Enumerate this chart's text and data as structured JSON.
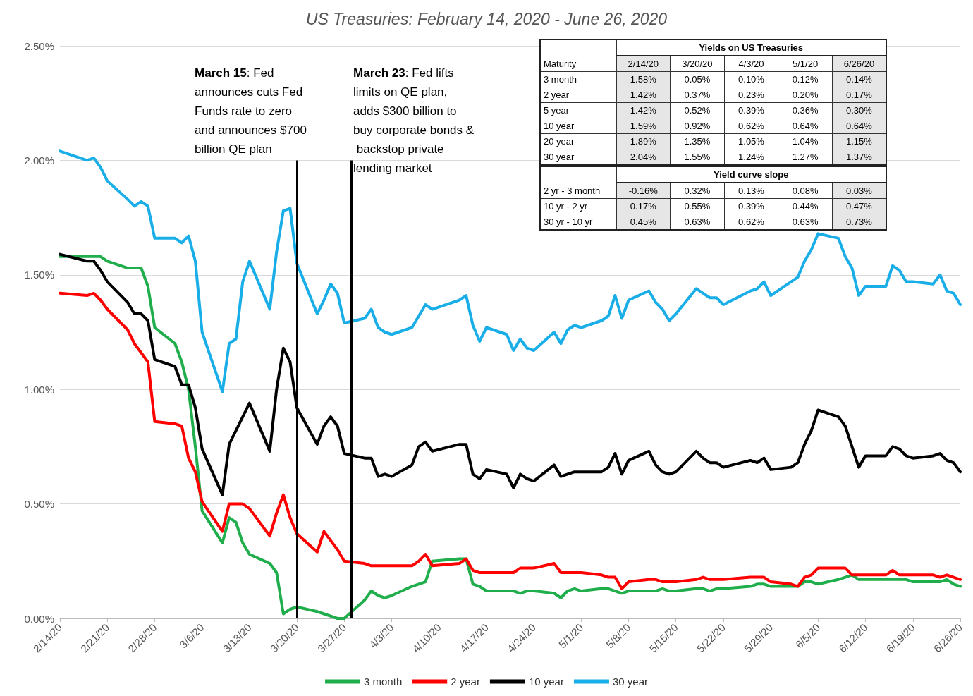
{
  "chart_data": [
    {
      "type": "line",
      "title": "US Treasuries: February 14, 2020 - June 26, 2020",
      "x": [
        "2020-02-14",
        "2020-02-18",
        "2020-02-19",
        "2020-02-20",
        "2020-02-21",
        "2020-02-24",
        "2020-02-25",
        "2020-02-26",
        "2020-02-27",
        "2020-02-28",
        "2020-03-02",
        "2020-03-03",
        "2020-03-04",
        "2020-03-05",
        "2020-03-06",
        "2020-03-09",
        "2020-03-10",
        "2020-03-11",
        "2020-03-12",
        "2020-03-13",
        "2020-03-16",
        "2020-03-17",
        "2020-03-18",
        "2020-03-19",
        "2020-03-20",
        "2020-03-23",
        "2020-03-24",
        "2020-03-25",
        "2020-03-26",
        "2020-03-27",
        "2020-03-30",
        "2020-03-31",
        "2020-04-01",
        "2020-04-02",
        "2020-04-03",
        "2020-04-06",
        "2020-04-07",
        "2020-04-08",
        "2020-04-09",
        "2020-04-13",
        "2020-04-14",
        "2020-04-15",
        "2020-04-16",
        "2020-04-17",
        "2020-04-20",
        "2020-04-21",
        "2020-04-22",
        "2020-04-23",
        "2020-04-24",
        "2020-04-27",
        "2020-04-28",
        "2020-04-29",
        "2020-04-30",
        "2020-05-01",
        "2020-05-04",
        "2020-05-05",
        "2020-05-06",
        "2020-05-07",
        "2020-05-08",
        "2020-05-11",
        "2020-05-12",
        "2020-05-13",
        "2020-05-14",
        "2020-05-15",
        "2020-05-18",
        "2020-05-19",
        "2020-05-20",
        "2020-05-21",
        "2020-05-22",
        "2020-05-26",
        "2020-05-27",
        "2020-05-28",
        "2020-05-29",
        "2020-06-01",
        "2020-06-02",
        "2020-06-03",
        "2020-06-04",
        "2020-06-05",
        "2020-06-08",
        "2020-06-09",
        "2020-06-10",
        "2020-06-11",
        "2020-06-12",
        "2020-06-15",
        "2020-06-16",
        "2020-06-17",
        "2020-06-18",
        "2020-06-19",
        "2020-06-22",
        "2020-06-23",
        "2020-06-24",
        "2020-06-25",
        "2020-06-26"
      ],
      "series": [
        {
          "name": "3 month",
          "color": "#1fae4b",
          "values": [
            1.58,
            1.58,
            1.58,
            1.58,
            1.56,
            1.53,
            1.53,
            1.53,
            1.45,
            1.27,
            1.2,
            1.12,
            1.0,
            0.75,
            0.47,
            0.33,
            0.44,
            0.42,
            0.33,
            0.28,
            0.24,
            0.2,
            0.02,
            0.04,
            0.05,
            0.03,
            0.02,
            0.01,
            0.0,
            0.0,
            0.08,
            0.12,
            0.1,
            0.09,
            0.1,
            0.14,
            0.15,
            0.16,
            0.25,
            0.26,
            0.26,
            0.15,
            0.14,
            0.12,
            0.12,
            0.12,
            0.11,
            0.12,
            0.12,
            0.11,
            0.09,
            0.12,
            0.13,
            0.12,
            0.13,
            0.13,
            0.12,
            0.11,
            0.12,
            0.12,
            0.12,
            0.13,
            0.12,
            0.12,
            0.13,
            0.13,
            0.12,
            0.13,
            0.13,
            0.14,
            0.15,
            0.15,
            0.14,
            0.14,
            0.14,
            0.16,
            0.16,
            0.15,
            0.17,
            0.18,
            0.19,
            0.17,
            0.17,
            0.17,
            0.17,
            0.17,
            0.17,
            0.16,
            0.16,
            0.16,
            0.17,
            0.15,
            0.14
          ]
        },
        {
          "name": "2 year",
          "color": "#ff0000",
          "values": [
            1.42,
            1.41,
            1.42,
            1.39,
            1.35,
            1.26,
            1.2,
            1.16,
            1.12,
            0.86,
            0.85,
            0.84,
            0.7,
            0.64,
            0.51,
            0.38,
            0.5,
            0.5,
            0.5,
            0.48,
            0.36,
            0.46,
            0.54,
            0.44,
            0.37,
            0.29,
            0.38,
            0.34,
            0.3,
            0.25,
            0.24,
            0.23,
            0.23,
            0.23,
            0.23,
            0.23,
            0.25,
            0.28,
            0.23,
            0.24,
            0.26,
            0.21,
            0.2,
            0.2,
            0.2,
            0.2,
            0.22,
            0.22,
            0.22,
            0.24,
            0.2,
            0.2,
            0.2,
            0.2,
            0.19,
            0.18,
            0.18,
            0.13,
            0.16,
            0.17,
            0.17,
            0.16,
            0.16,
            0.16,
            0.17,
            0.18,
            0.17,
            0.17,
            0.17,
            0.18,
            0.18,
            0.18,
            0.16,
            0.15,
            0.14,
            0.18,
            0.19,
            0.22,
            0.22,
            0.22,
            0.19,
            0.19,
            0.19,
            0.19,
            0.21,
            0.19,
            0.19,
            0.19,
            0.19,
            0.18,
            0.19,
            0.18,
            0.17
          ]
        },
        {
          "name": "10 year",
          "color": "#000000",
          "values": [
            1.59,
            1.56,
            1.56,
            1.52,
            1.47,
            1.38,
            1.33,
            1.33,
            1.3,
            1.13,
            1.1,
            1.02,
            1.02,
            0.92,
            0.74,
            0.54,
            0.76,
            0.82,
            0.88,
            0.94,
            0.73,
            1.0,
            1.18,
            1.12,
            0.92,
            0.76,
            0.84,
            0.88,
            0.84,
            0.72,
            0.7,
            0.7,
            0.62,
            0.63,
            0.62,
            0.67,
            0.75,
            0.77,
            0.73,
            0.76,
            0.76,
            0.63,
            0.61,
            0.65,
            0.63,
            0.57,
            0.63,
            0.61,
            0.6,
            0.67,
            0.62,
            0.63,
            0.64,
            0.64,
            0.64,
            0.66,
            0.72,
            0.63,
            0.69,
            0.73,
            0.67,
            0.64,
            0.63,
            0.64,
            0.73,
            0.7,
            0.68,
            0.68,
            0.66,
            0.69,
            0.68,
            0.7,
            0.65,
            0.66,
            0.68,
            0.76,
            0.82,
            0.91,
            0.88,
            0.84,
            0.75,
            0.66,
            0.71,
            0.71,
            0.75,
            0.74,
            0.71,
            0.7,
            0.71,
            0.72,
            0.69,
            0.68,
            0.64
          ]
        },
        {
          "name": "30 year",
          "color": "#1aaee8",
          "values": [
            2.04,
            2.0,
            2.01,
            1.97,
            1.91,
            1.83,
            1.8,
            1.82,
            1.8,
            1.66,
            1.66,
            1.64,
            1.67,
            1.56,
            1.25,
            0.99,
            1.2,
            1.22,
            1.47,
            1.56,
            1.35,
            1.6,
            1.78,
            1.79,
            1.55,
            1.33,
            1.39,
            1.46,
            1.42,
            1.29,
            1.31,
            1.35,
            1.27,
            1.25,
            1.24,
            1.27,
            1.32,
            1.37,
            1.35,
            1.39,
            1.41,
            1.28,
            1.21,
            1.27,
            1.24,
            1.17,
            1.22,
            1.18,
            1.17,
            1.25,
            1.2,
            1.26,
            1.28,
            1.27,
            1.3,
            1.32,
            1.41,
            1.31,
            1.39,
            1.43,
            1.38,
            1.35,
            1.3,
            1.33,
            1.44,
            1.42,
            1.4,
            1.4,
            1.37,
            1.43,
            1.44,
            1.47,
            1.41,
            1.47,
            1.49,
            1.56,
            1.61,
            1.68,
            1.66,
            1.58,
            1.53,
            1.41,
            1.45,
            1.45,
            1.54,
            1.52,
            1.47,
            1.47,
            1.46,
            1.5,
            1.43,
            1.42,
            1.37
          ]
        }
      ],
      "xlim": [
        "2020-02-14",
        "2020-06-26"
      ],
      "xticks": [
        {
          "value": "2020-02-14",
          "label": "2/14/20"
        },
        {
          "value": "2020-02-21",
          "label": "2/21/20"
        },
        {
          "value": "2020-02-28",
          "label": "2/28/20"
        },
        {
          "value": "2020-03-06",
          "label": "3/6/20"
        },
        {
          "value": "2020-03-13",
          "label": "3/13/20"
        },
        {
          "value": "2020-03-20",
          "label": "3/20/20"
        },
        {
          "value": "2020-03-27",
          "label": "3/27/20"
        },
        {
          "value": "2020-04-03",
          "label": "4/3/20"
        },
        {
          "value": "2020-04-10",
          "label": "4/10/20"
        },
        {
          "value": "2020-04-17",
          "label": "4/17/20"
        },
        {
          "value": "2020-04-24",
          "label": "4/24/20"
        },
        {
          "value": "2020-05-01",
          "label": "5/1/20"
        },
        {
          "value": "2020-05-08",
          "label": "5/8/20"
        },
        {
          "value": "2020-05-15",
          "label": "5/15/20"
        },
        {
          "value": "2020-05-22",
          "label": "5/22/20"
        },
        {
          "value": "2020-05-29",
          "label": "5/29/20"
        },
        {
          "value": "2020-06-05",
          "label": "6/5/20"
        },
        {
          "value": "2020-06-12",
          "label": "6/12/20"
        },
        {
          "value": "2020-06-19",
          "label": "6/19/20"
        },
        {
          "value": "2020-06-26",
          "label": "6/26/20"
        }
      ],
      "ylim": [
        0,
        2.5
      ],
      "yticks": [
        {
          "value": 0,
          "label": "0.00%"
        },
        {
          "value": 0.5,
          "label": "0.50%"
        },
        {
          "value": 1,
          "label": "1.00%"
        },
        {
          "value": 1.5,
          "label": "1.50%"
        },
        {
          "value": 2,
          "label": "2.00%"
        },
        {
          "value": 2.5,
          "label": "2.50%"
        }
      ],
      "ref_lines": [
        {
          "axis": "x",
          "value": "2020-03-20",
          "color": "#000000",
          "label": "March 15: Fed announces cuts Fed Funds rate to zero and announces $700 billion QE plan"
        },
        {
          "axis": "x",
          "value": "2020-03-28",
          "color": "#000000",
          "label": "March 23: Fed lifts limits on QE plan, adds $300 billion to buy corporate bonds & backstop private lending market"
        }
      ],
      "grid": "y",
      "legend": "bottom",
      "marker": "none",
      "line_style": "solid"
    },
    {
      "type": "other",
      "title": "Yields on US Treasuries",
      "ylabel": "Maturity",
      "categories": [
        "2/14/20",
        "3/20/20",
        "4/3/20",
        "5/1/20",
        "6/26/20"
      ],
      "y_categories": [
        "3 month",
        "2 year",
        "5 year",
        "10 year",
        "20 year",
        "30 year"
      ],
      "cell_labels": [
        [
          "1.58%",
          "0.05%",
          "0.10%",
          "0.12%",
          "0.14%"
        ],
        [
          "1.42%",
          "0.37%",
          "0.23%",
          "0.20%",
          "0.17%"
        ],
        [
          "1.42%",
          "0.52%",
          "0.39%",
          "0.36%",
          "0.30%"
        ],
        [
          "1.59%",
          "0.92%",
          "0.62%",
          "0.64%",
          "0.64%"
        ],
        [
          "1.89%",
          "1.35%",
          "1.05%",
          "1.04%",
          "1.15%"
        ],
        [
          "2.04%",
          "1.55%",
          "1.24%",
          "1.27%",
          "1.37%"
        ]
      ]
    },
    {
      "type": "other",
      "title": "Yield curve slope",
      "y_categories": [
        "2 yr - 3 month",
        "10 yr - 2 yr",
        "30 yr - 10 yr"
      ],
      "cell_labels": [
        [
          "-0.16%",
          "0.32%",
          "0.13%",
          "0.08%",
          "0.03%"
        ],
        [
          "0.17%",
          "0.55%",
          "0.39%",
          "0.44%",
          "0.47%"
        ],
        [
          "0.45%",
          "0.63%",
          "0.62%",
          "0.63%",
          "0.73%"
        ]
      ]
    }
  ]
}
